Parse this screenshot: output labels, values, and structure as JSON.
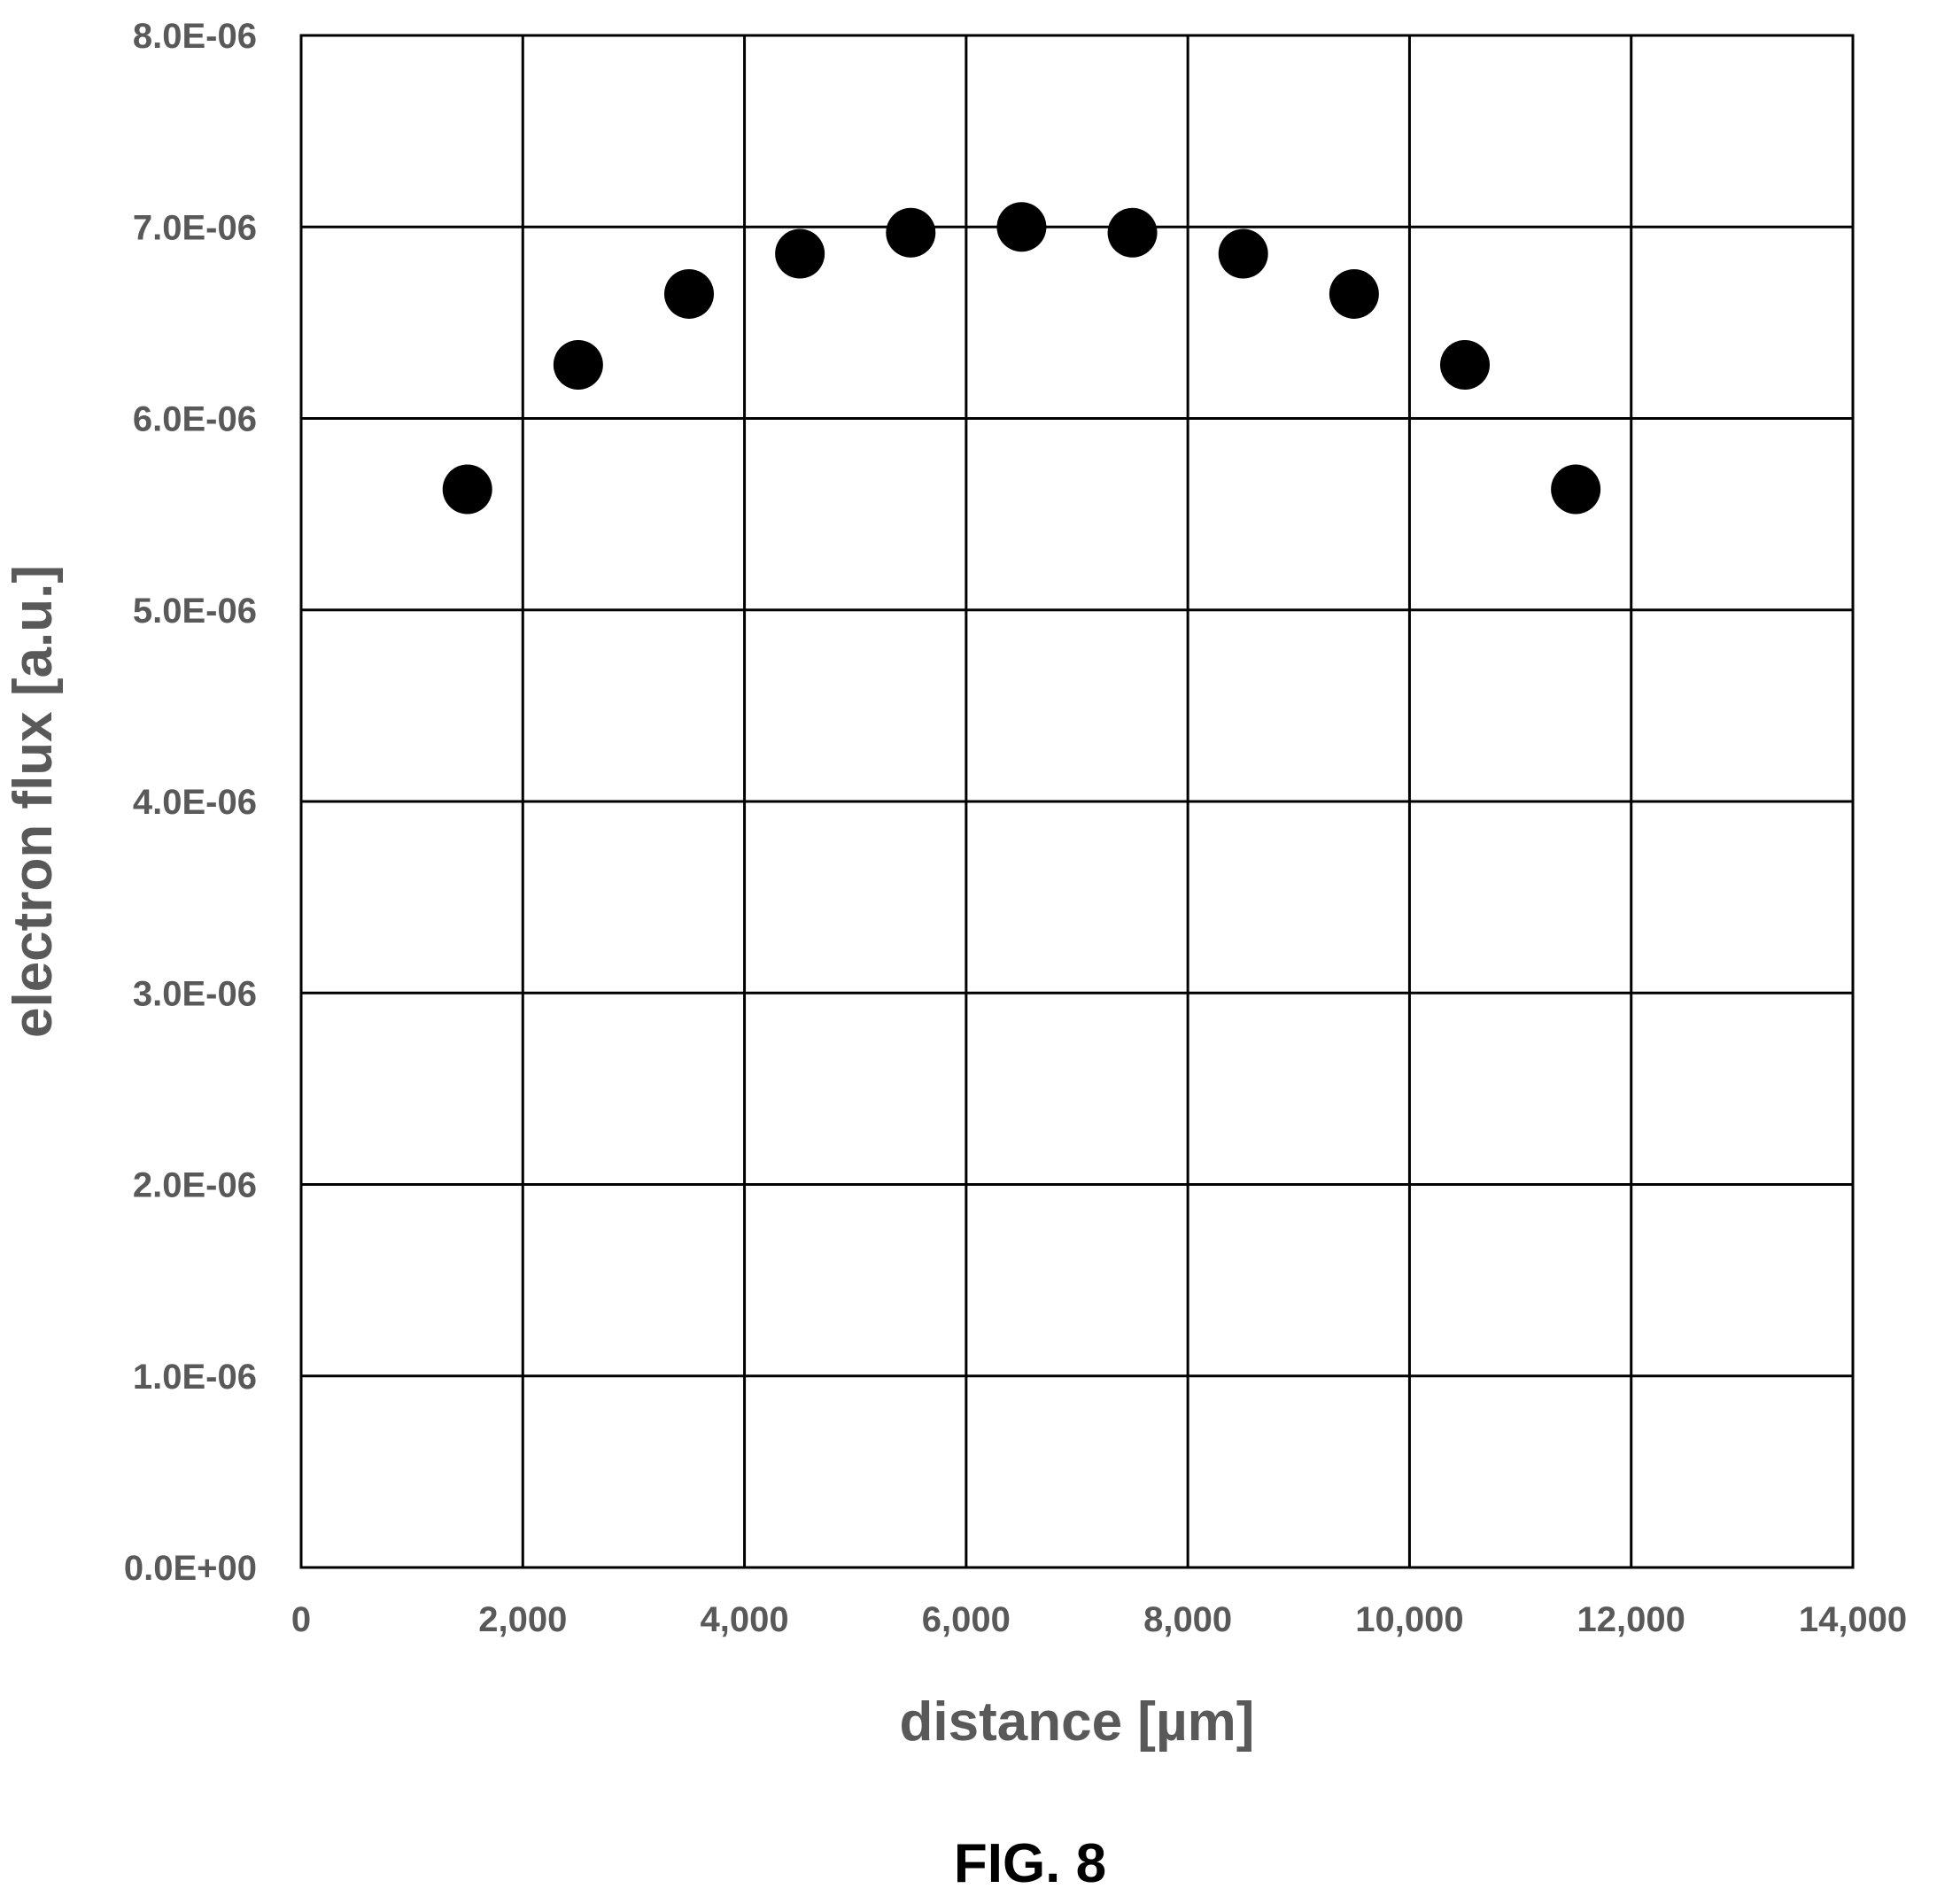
{
  "chart_data": {
    "type": "scatter",
    "xlabel": "distance [µm]",
    "ylabel": "electron flux [a.u.]",
    "xlim": [
      0,
      14000
    ],
    "ylim": [
      0,
      8e-06
    ],
    "x_ticks": [
      0,
      2000,
      4000,
      6000,
      8000,
      10000,
      12000,
      14000
    ],
    "x_tick_labels": [
      "0",
      "2,000",
      "4,000",
      "6,000",
      "8,000",
      "10,000",
      "12,000",
      "14,000"
    ],
    "y_ticks": [
      0,
      1e-06,
      2e-06,
      3e-06,
      4e-06,
      5e-06,
      6e-06,
      7e-06,
      8e-06
    ],
    "y_tick_labels": [
      "0.0E+00",
      "1.0E-06",
      "2.0E-06",
      "3.0E-06",
      "4.0E-06",
      "5.0E-06",
      "6.0E-06",
      "7.0E-06",
      "8.0E-06"
    ],
    "grid": true,
    "legend": "none",
    "marker_color": "#000000",
    "series": [
      {
        "x": [
          1500,
          2500,
          3500,
          4500,
          5500,
          6500,
          7500,
          8500,
          9500,
          10500,
          11500
        ],
        "y": [
          5.63e-06,
          6.28e-06,
          6.65e-06,
          6.86e-06,
          6.97e-06,
          7e-06,
          6.97e-06,
          6.86e-06,
          6.65e-06,
          6.28e-06,
          5.63e-06
        ]
      }
    ]
  },
  "figure_label": "FIG. 8"
}
